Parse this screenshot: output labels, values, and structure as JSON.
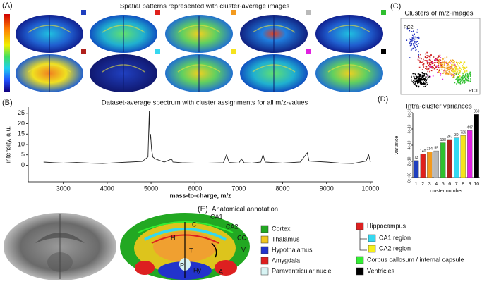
{
  "panel_labels": [
    "(A)",
    "(B)",
    "(C)",
    "(D)",
    "(E)"
  ],
  "panel_a": {
    "title": "Spatial patterns represented with cluster-average images",
    "swatch_colors": [
      "#1f3fbf",
      "#e0201c",
      "#f39a1e",
      "#b9b9b9",
      "#2fbf2f",
      "#b0201c",
      "#35d8f0",
      "#f5e31c",
      "#e020e0",
      "#000000"
    ]
  },
  "panel_c": {
    "title": "Clusters of m/z-images",
    "axis_labels": [
      "PC2",
      "PC1"
    ]
  },
  "chart_data": [
    {
      "type": "line",
      "title": "Dataset-average spectrum with cluster assignments for all m/z-values",
      "x_label": "mass-to-charge, m/z",
      "y_label": "intensity, a.u.",
      "x": [
        2550,
        2800,
        3000,
        3300,
        3600,
        3900,
        4200,
        4500,
        4800,
        4930,
        4960,
        4975,
        4990,
        5010,
        5040,
        5100,
        5300,
        5470,
        5500,
        5700,
        6000,
        6300,
        6650,
        6720,
        6780,
        7000,
        7060,
        7120,
        7300,
        7500,
        7550,
        7600,
        8000,
        8400,
        8560,
        8600,
        9000,
        9300,
        9600,
        9900,
        9960,
        10000
      ],
      "values": [
        1.5,
        1.2,
        1,
        1.3,
        1,
        0.8,
        1.2,
        1.5,
        1.8,
        4,
        26,
        12,
        15,
        8,
        4,
        3,
        1.5,
        3,
        1.5,
        1.2,
        1,
        1,
        1.2,
        5,
        1.3,
        1,
        3,
        1.2,
        1,
        1.5,
        5,
        1.5,
        1,
        1.5,
        6,
        2,
        1.5,
        1,
        0.8,
        2,
        5,
        1.5
      ],
      "color": "#222222",
      "xlim": [
        2200,
        10050
      ],
      "ylim": [
        -8,
        28
      ],
      "xticks": [
        3000,
        4000,
        5000,
        6000,
        7000,
        8000,
        9000,
        10000
      ],
      "yticks": [
        0,
        5,
        10,
        15,
        20,
        25
      ]
    },
    {
      "type": "bar",
      "title": "Intra-cluster variances",
      "x_label": "cluster number",
      "y_label": "variance",
      "categories": [
        "1",
        "2",
        "3",
        "4",
        "5",
        "6",
        "7",
        "8",
        "9",
        "10"
      ],
      "values": [
        2.1e-10,
        2.9e-10,
        3.2e-10,
        3.3e-10,
        4.3e-10,
        4.7e-10,
        4.9e-10,
        5.2e-10,
        5.8e-10,
        7.8e-10
      ],
      "colors": [
        "#1f3fbf",
        "#e0201c",
        "#f39a1e",
        "#b9b9b9",
        "#2fbf2f",
        "#b0201c",
        "#35d8f0",
        "#f5e31c",
        "#e020e0",
        "#000000"
      ],
      "annotations": [
        73,
        140,
        214,
        55,
        198,
        267,
        30,
        736,
        447,
        860
      ],
      "ylim": [
        0,
        8e-10
      ],
      "yticks": [
        {
          "value": 0,
          "label": "0e+00"
        },
        {
          "value": 2e-10,
          "label": "2e-10"
        },
        {
          "value": 4e-10,
          "label": "4e-10"
        },
        {
          "value": 6e-10,
          "label": "6e-10"
        },
        {
          "value": 8e-10,
          "label": "8e-10"
        }
      ]
    }
  ],
  "panel_e": {
    "title": "Anatomical annotation",
    "region_labels": [
      "C",
      "CA1",
      "CA2",
      "Hi",
      "T",
      "CC",
      "V",
      "P",
      "Hy",
      "A"
    ],
    "legend": [
      {
        "name": "Cortex",
        "color": "#22a822"
      },
      {
        "name": "Thalamus",
        "color": "#f2c61c"
      },
      {
        "name": "Hypothalamus",
        "color": "#2233cc"
      },
      {
        "name": "Amygdala",
        "color": "#dd2020"
      },
      {
        "name": "Paraventricular nuclei",
        "color": "#d8f4f4"
      },
      {
        "name": "Hippocampus",
        "color": "#dd2020"
      },
      {
        "name": "CA1 region",
        "color": "#35d8f0"
      },
      {
        "name": "CA2 region",
        "color": "#f5f01c"
      },
      {
        "name": "Corpus callosum / internal capsule",
        "color": "#33ee33"
      },
      {
        "name": "Ventricles",
        "color": "#000000"
      }
    ]
  }
}
